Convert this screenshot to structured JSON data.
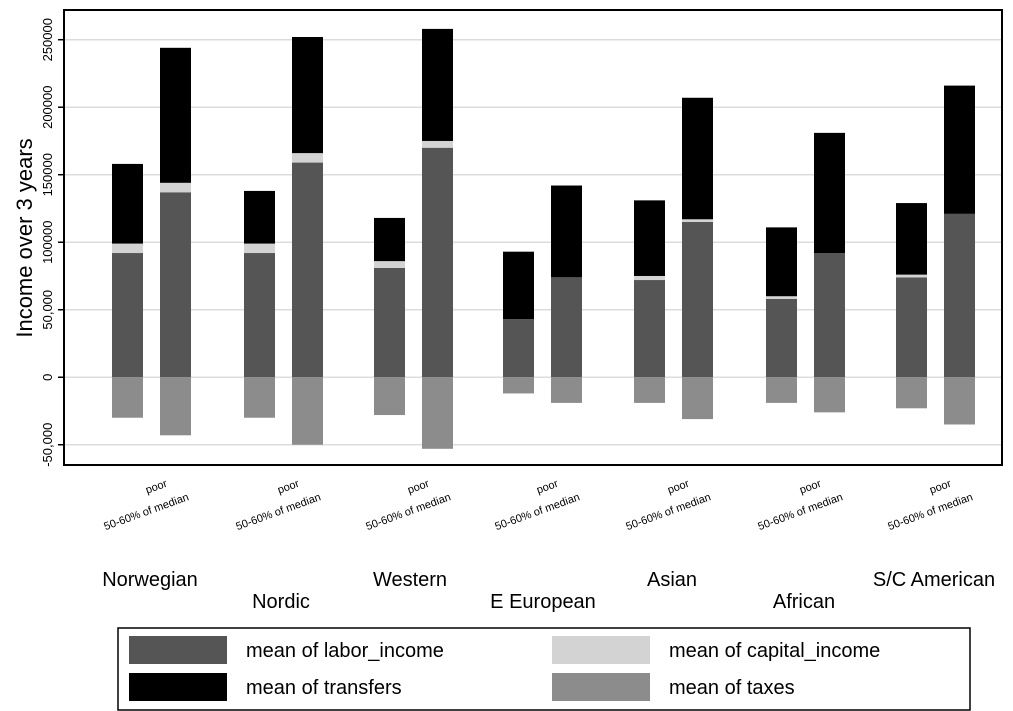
{
  "chart_data": {
    "type": "bar",
    "stacked": true,
    "ylabel": "Income over 3 years",
    "ylim": [
      -65000,
      272000
    ],
    "yticks": [
      {
        "value": -50000,
        "label": "-50,000"
      },
      {
        "value": 0,
        "label": "0"
      },
      {
        "value": 50000,
        "label": "50,000"
      },
      {
        "value": 100000,
        "label": "100000"
      },
      {
        "value": 150000,
        "label": "150000"
      },
      {
        "value": 200000,
        "label": "200000"
      },
      {
        "value": 250000,
        "label": "250000"
      }
    ],
    "grid": true,
    "subcategories": [
      "poor",
      "50-60% of median"
    ],
    "groups": [
      "Norwegian",
      "Nordic",
      "Western",
      "E European",
      "Asian",
      "African",
      "S/C American"
    ],
    "legend_position": "bottom",
    "series": [
      {
        "name": "mean of labor_income",
        "color": "#555555",
        "values": [
          [
            92000,
            137000
          ],
          [
            92000,
            159000
          ],
          [
            81000,
            170000
          ],
          [
            43000,
            74000
          ],
          [
            72000,
            115000
          ],
          [
            58000,
            92000
          ],
          [
            74000,
            121000
          ]
        ]
      },
      {
        "name": "mean of capital_income",
        "color": "#d3d3d3",
        "values": [
          [
            7000,
            7000
          ],
          [
            7000,
            7000
          ],
          [
            5000,
            5000
          ],
          [
            0,
            0
          ],
          [
            3000,
            2000
          ],
          [
            2000,
            0
          ],
          [
            2000,
            0
          ]
        ]
      },
      {
        "name": "mean of transfers",
        "color": "#000000",
        "values": [
          [
            59000,
            100000
          ],
          [
            39000,
            86000
          ],
          [
            32000,
            83000
          ],
          [
            50000,
            68000
          ],
          [
            56000,
            90000
          ],
          [
            51000,
            89000
          ],
          [
            53000,
            95000
          ]
        ]
      },
      {
        "name": "mean of taxes",
        "color": "#8c8c8c",
        "values": [
          [
            -30000,
            -43000
          ],
          [
            -30000,
            -50000
          ],
          [
            -28000,
            -53000
          ],
          [
            -12000,
            -19000
          ],
          [
            -19000,
            -31000
          ],
          [
            -19000,
            -26000
          ],
          [
            -23000,
            -35000
          ]
        ]
      }
    ]
  }
}
